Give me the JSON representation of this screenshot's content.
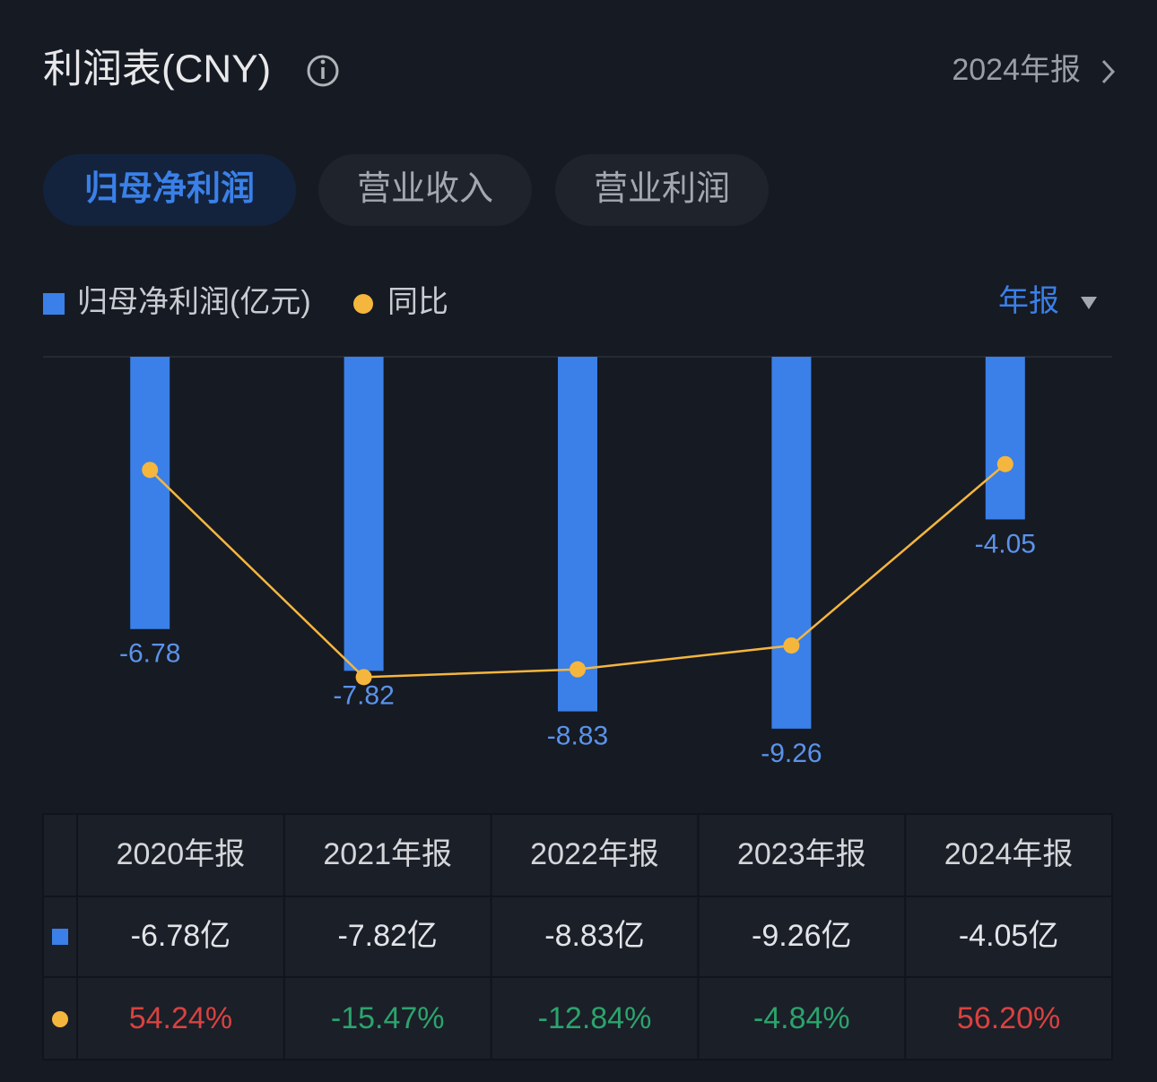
{
  "header": {
    "title": "利润表(CNY)",
    "period": "2024年报"
  },
  "tabs": [
    "归母净利润",
    "营业收入",
    "营业利润"
  ],
  "active_tab": 0,
  "period_selector": "年报",
  "chart_data": {
    "type": "bar",
    "categories": [
      "2020年报",
      "2021年报",
      "2022年报",
      "2023年报",
      "2024年报"
    ],
    "series": [
      {
        "name": "归母净利润(亿元)",
        "type": "bar",
        "color": "#3a80e8",
        "values": [
          -6.78,
          -7.82,
          -8.83,
          -9.26,
          -4.05
        ],
        "value_labels": [
          "-6.78亿",
          "-7.82亿",
          "-8.83亿",
          "-9.26亿",
          "-4.05亿"
        ]
      },
      {
        "name": "同比",
        "type": "line",
        "axis": "y2",
        "color": "#f5b63e",
        "values": [
          54.24,
          -15.47,
          -12.84,
          -4.84,
          56.2
        ],
        "value_labels": [
          "54.24%",
          "-15.47%",
          "-12.84%",
          "-4.84%",
          "56.20%"
        ]
      }
    ],
    "ylim": [
      -10,
      0
    ],
    "y2lim": [
      -42.8,
      92.3
    ],
    "positive_color": "#d9423f",
    "negative_color": "#2ba46c"
  }
}
